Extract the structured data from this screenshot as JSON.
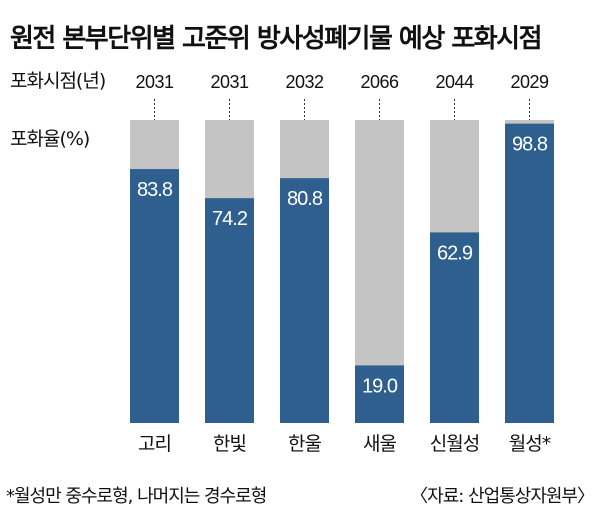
{
  "title": "원전 본부단위별 고준위 방사성폐기물 예상 포화시점",
  "row_label_year": "포화시점(년)",
  "row_label_rate": "포화율(%)",
  "footnote": "*월성만 중수로형, 나머지는 경수로형",
  "source": "〈자료: 산업통상자원부〉",
  "colors": {
    "filled": "#2e5f8e",
    "remaining": "#c4c4c4",
    "text_on_bar": "#ffffff"
  },
  "chart_data": {
    "type": "bar",
    "stacked": true,
    "categories": [
      "고리",
      "한빛",
      "한울",
      "새울",
      "신월성",
      "월성*"
    ],
    "values": [
      83.8,
      74.2,
      80.8,
      19.0,
      62.9,
      98.8
    ],
    "value_labels": [
      "83.8",
      "74.2",
      "80.8",
      "19.0",
      "62.9",
      "98.8"
    ],
    "saturation_years": [
      "2031",
      "2031",
      "2032",
      "2066",
      "2044",
      "2029"
    ],
    "ylim": [
      0,
      100
    ],
    "grid": false
  }
}
